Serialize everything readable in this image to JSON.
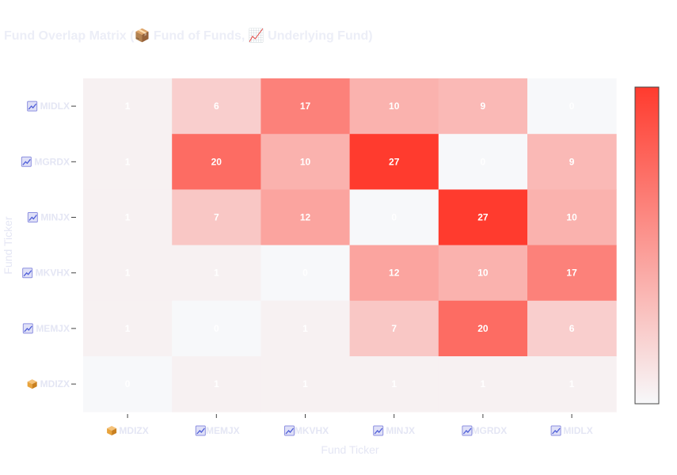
{
  "chart_data": {
    "type": "heatmap",
    "title": "Fund Overlap Matrix (📦 Fund of Funds, 📈 Underlying Fund)",
    "xlabel": "Fund Ticker",
    "ylabel": "Fund Ticker",
    "x_categories": [
      {
        "ticker": "MDIZX",
        "icon": "package-icon"
      },
      {
        "ticker": "MEMJX",
        "icon": "chart-icon"
      },
      {
        "ticker": "MKVHX",
        "icon": "chart-icon"
      },
      {
        "ticker": "MINJX",
        "icon": "chart-icon"
      },
      {
        "ticker": "MGRDX",
        "icon": "chart-icon"
      },
      {
        "ticker": "MIDLX",
        "icon": "chart-icon"
      }
    ],
    "y_categories_top_to_bottom": [
      {
        "ticker": "MIDLX",
        "icon": "chart-icon"
      },
      {
        "ticker": "MGRDX",
        "icon": "chart-icon"
      },
      {
        "ticker": "MINJX",
        "icon": "chart-icon"
      },
      {
        "ticker": "MKVHX",
        "icon": "chart-icon"
      },
      {
        "ticker": "MEMJX",
        "icon": "chart-icon"
      },
      {
        "ticker": "MDIZX",
        "icon": "package-icon"
      }
    ],
    "values": [
      [
        1,
        6,
        17,
        10,
        9,
        0
      ],
      [
        1,
        20,
        10,
        27,
        0,
        9
      ],
      [
        1,
        7,
        12,
        0,
        27,
        10
      ],
      [
        1,
        1,
        0,
        12,
        10,
        17
      ],
      [
        1,
        0,
        1,
        7,
        20,
        6
      ],
      [
        0,
        1,
        1,
        1,
        1,
        1
      ]
    ],
    "zlim": [
      0,
      27
    ],
    "colorscale": [
      "#f7f8fa",
      "#ff3b2e"
    ],
    "colorbar": "right",
    "icon_colors": {
      "package-icon": "#e8a33c",
      "chart-icon": "#8c8fe0"
    }
  }
}
